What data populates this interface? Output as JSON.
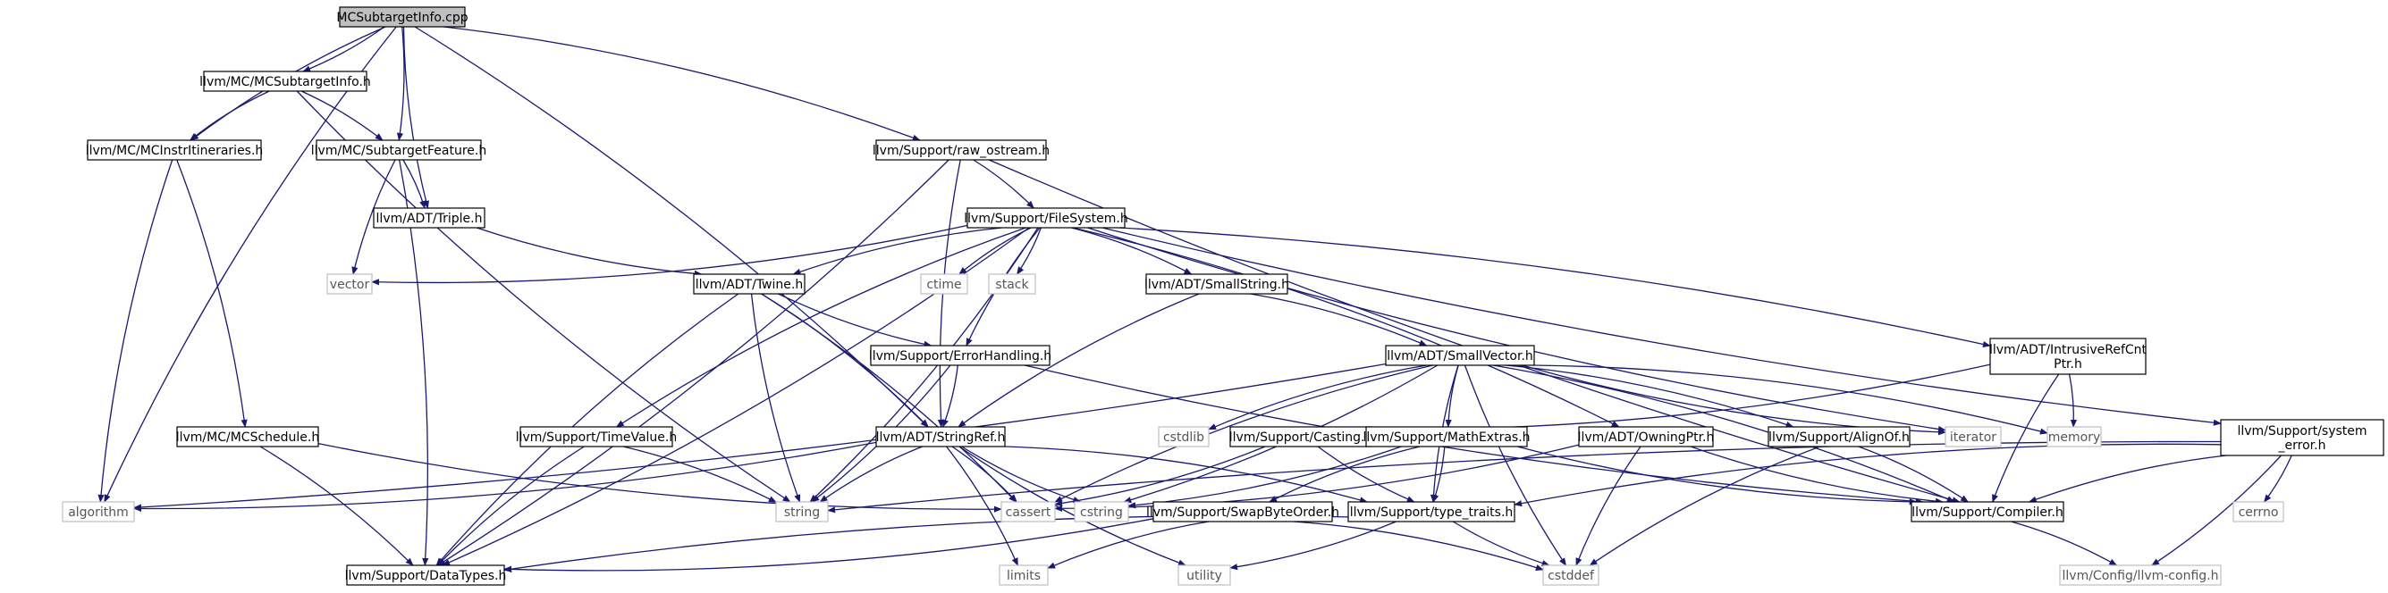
{
  "graph": {
    "nodes": [
      {
        "id": "MCSubtargetInfo.cpp",
        "label": "MCSubtargetInfo.cpp",
        "kind": "root"
      },
      {
        "id": "llvm/MC/MCSubtargetInfo.h",
        "label": "llvm/MC/MCSubtargetInfo.h",
        "kind": "header"
      },
      {
        "id": "llvm/Support/raw_ostream.h",
        "label": "llvm/Support/raw_ostream.h",
        "kind": "header"
      },
      {
        "id": "llvm/MC/MCInstrItineraries.h",
        "label": "llvm/MC/MCInstrItineraries.h",
        "kind": "header"
      },
      {
        "id": "llvm/MC/SubtargetFeature.h",
        "label": "llvm/MC/SubtargetFeature.h",
        "kind": "header"
      },
      {
        "id": "llvm/ADT/Triple.h",
        "label": "llvm/ADT/Triple.h",
        "kind": "header"
      },
      {
        "id": "llvm/Support/FileSystem.h",
        "label": "llvm/Support/FileSystem.h",
        "kind": "header"
      },
      {
        "id": "vector",
        "label": "vector",
        "kind": "system"
      },
      {
        "id": "ctime",
        "label": "ctime",
        "kind": "system"
      },
      {
        "id": "stack",
        "label": "stack",
        "kind": "system"
      },
      {
        "id": "llvm/ADT/Twine.h",
        "label": "llvm/ADT/Twine.h",
        "kind": "header"
      },
      {
        "id": "llvm/ADT/SmallString.h",
        "label": "llvm/ADT/SmallString.h",
        "kind": "header"
      },
      {
        "id": "llvm/Support/ErrorHandling.h",
        "label": "llvm/Support/ErrorHandling.h",
        "kind": "header"
      },
      {
        "id": "llvm/ADT/SmallVector.h",
        "label": "llvm/ADT/SmallVector.h",
        "kind": "header"
      },
      {
        "id": "llvm/ADT/IntrusiveRefCntPtr.h",
        "label": [
          "llvm/ADT/IntrusiveRefCnt",
          "Ptr.h"
        ],
        "kind": "header"
      },
      {
        "id": "llvm/MC/MCSchedule.h",
        "label": "llvm/MC/MCSchedule.h",
        "kind": "header"
      },
      {
        "id": "llvm/Support/TimeValue.h",
        "label": "llvm/Support/TimeValue.h",
        "kind": "header"
      },
      {
        "id": "llvm/ADT/StringRef.h",
        "label": "llvm/ADT/StringRef.h",
        "kind": "header"
      },
      {
        "id": "cstdlib",
        "label": "cstdlib",
        "kind": "system"
      },
      {
        "id": "llvm/Support/Casting.h",
        "label": "llvm/Support/Casting.h",
        "kind": "header"
      },
      {
        "id": "llvm/Support/MathExtras.h",
        "label": "llvm/Support/MathExtras.h",
        "kind": "header"
      },
      {
        "id": "llvm/ADT/OwningPtr.h",
        "label": "llvm/ADT/OwningPtr.h",
        "kind": "header"
      },
      {
        "id": "llvm/Support/AlignOf.h",
        "label": "llvm/Support/AlignOf.h",
        "kind": "header"
      },
      {
        "id": "iterator",
        "label": "iterator",
        "kind": "system"
      },
      {
        "id": "memory",
        "label": "memory",
        "kind": "system"
      },
      {
        "id": "llvm/Support/system_error.h",
        "label": [
          "llvm/Support/system",
          "_error.h"
        ],
        "kind": "header"
      },
      {
        "id": "algorithm",
        "label": "algorithm",
        "kind": "system"
      },
      {
        "id": "string",
        "label": "string",
        "kind": "system"
      },
      {
        "id": "cassert",
        "label": "cassert",
        "kind": "system"
      },
      {
        "id": "cstring",
        "label": "cstring",
        "kind": "system"
      },
      {
        "id": "llvm/Support/SwapByteOrder.h",
        "label": "llvm/Support/SwapByteOrder.h",
        "kind": "header"
      },
      {
        "id": "llvm/Support/type_traits.h",
        "label": "llvm/Support/type_traits.h",
        "kind": "header"
      },
      {
        "id": "llvm/Support/Compiler.h",
        "label": "llvm/Support/Compiler.h",
        "kind": "header"
      },
      {
        "id": "cerrno",
        "label": "cerrno",
        "kind": "system"
      },
      {
        "id": "llvm/Support/DataTypes.h",
        "label": "llvm/Support/DataTypes.h",
        "kind": "header"
      },
      {
        "id": "limits",
        "label": "limits",
        "kind": "system"
      },
      {
        "id": "utility",
        "label": "utility",
        "kind": "system"
      },
      {
        "id": "cstddef",
        "label": "cstddef",
        "kind": "system"
      },
      {
        "id": "llvm/Config/llvm-config.h",
        "label": "llvm/Config/llvm-config.h",
        "kind": "system"
      }
    ],
    "edges": [
      [
        "MCSubtargetInfo.cpp",
        "llvm/MC/MCSubtargetInfo.h"
      ],
      [
        "MCSubtargetInfo.cpp",
        "llvm/MC/MCInstrItineraries.h"
      ],
      [
        "MCSubtargetInfo.cpp",
        "llvm/MC/SubtargetFeature.h"
      ],
      [
        "MCSubtargetInfo.cpp",
        "llvm/ADT/Triple.h"
      ],
      [
        "MCSubtargetInfo.cpp",
        "llvm/Support/raw_ostream.h"
      ],
      [
        "MCSubtargetInfo.cpp",
        "algorithm"
      ],
      [
        "MCSubtargetInfo.cpp",
        "llvm/ADT/StringRef.h"
      ],
      [
        "llvm/MC/MCSubtargetInfo.h",
        "llvm/MC/MCInstrItineraries.h"
      ],
      [
        "llvm/MC/MCSubtargetInfo.h",
        "llvm/MC/SubtargetFeature.h"
      ],
      [
        "llvm/MC/MCSubtargetInfo.h",
        "string"
      ],
      [
        "llvm/MC/MCInstrItineraries.h",
        "llvm/MC/MCSchedule.h"
      ],
      [
        "llvm/MC/MCInstrItineraries.h",
        "algorithm"
      ],
      [
        "llvm/MC/SubtargetFeature.h",
        "llvm/ADT/Triple.h"
      ],
      [
        "llvm/MC/SubtargetFeature.h",
        "vector"
      ],
      [
        "llvm/MC/SubtargetFeature.h",
        "llvm/Support/DataTypes.h"
      ],
      [
        "llvm/ADT/Triple.h",
        "llvm/ADT/Twine.h"
      ],
      [
        "llvm/Support/raw_ostream.h",
        "llvm/Support/FileSystem.h"
      ],
      [
        "llvm/Support/raw_ostream.h",
        "llvm/Support/Compiler.h"
      ],
      [
        "llvm/Support/raw_ostream.h",
        "llvm/Support/DataTypes.h"
      ],
      [
        "llvm/Support/raw_ostream.h",
        "llvm/ADT/StringRef.h"
      ],
      [
        "llvm/Support/FileSystem.h",
        "vector"
      ],
      [
        "llvm/Support/FileSystem.h",
        "ctime"
      ],
      [
        "llvm/Support/FileSystem.h",
        "stack"
      ],
      [
        "llvm/Support/FileSystem.h",
        "llvm/ADT/Twine.h"
      ],
      [
        "llvm/Support/FileSystem.h",
        "llvm/ADT/SmallString.h"
      ],
      [
        "llvm/Support/FileSystem.h",
        "llvm/Support/ErrorHandling.h"
      ],
      [
        "llvm/Support/FileSystem.h",
        "llvm/ADT/IntrusiveRefCntPtr.h"
      ],
      [
        "llvm/Support/FileSystem.h",
        "llvm/Support/system_error.h"
      ],
      [
        "llvm/Support/FileSystem.h",
        "llvm/ADT/OwningPtr.h"
      ],
      [
        "llvm/Support/FileSystem.h",
        "llvm/Support/TimeValue.h"
      ],
      [
        "llvm/Support/FileSystem.h",
        "llvm/Support/DataTypes.h"
      ],
      [
        "llvm/Support/FileSystem.h",
        "iterator"
      ],
      [
        "llvm/Support/FileSystem.h",
        "string"
      ],
      [
        "llvm/ADT/Twine.h",
        "llvm/Support/ErrorHandling.h"
      ],
      [
        "llvm/ADT/Twine.h",
        "llvm/ADT/StringRef.h"
      ],
      [
        "llvm/ADT/Twine.h",
        "string"
      ],
      [
        "llvm/ADT/Twine.h",
        "cassert"
      ],
      [
        "llvm/ADT/Twine.h",
        "llvm/Support/DataTypes.h"
      ],
      [
        "llvm/ADT/SmallString.h",
        "llvm/ADT/SmallVector.h"
      ],
      [
        "llvm/ADT/SmallString.h",
        "llvm/ADT/StringRef.h"
      ],
      [
        "llvm/Support/ErrorHandling.h",
        "llvm/ADT/StringRef.h"
      ],
      [
        "llvm/Support/ErrorHandling.h",
        "llvm/Support/Compiler.h"
      ],
      [
        "llvm/Support/ErrorHandling.h",
        "string"
      ],
      [
        "llvm/ADT/SmallVector.h",
        "cstdlib"
      ],
      [
        "llvm/ADT/SmallVector.h",
        "algorithm"
      ],
      [
        "llvm/ADT/SmallVector.h",
        "cassert"
      ],
      [
        "llvm/ADT/SmallVector.h",
        "cstring"
      ],
      [
        "llvm/ADT/SmallVector.h",
        "llvm/Support/MathExtras.h"
      ],
      [
        "llvm/ADT/SmallVector.h",
        "llvm/Support/AlignOf.h"
      ],
      [
        "llvm/ADT/SmallVector.h",
        "llvm/Support/type_traits.h"
      ],
      [
        "llvm/ADT/SmallVector.h",
        "llvm/Support/Compiler.h"
      ],
      [
        "llvm/ADT/SmallVector.h",
        "iterator"
      ],
      [
        "llvm/ADT/SmallVector.h",
        "memory"
      ],
      [
        "llvm/ADT/SmallVector.h",
        "cstddef"
      ],
      [
        "llvm/ADT/IntrusiveRefCntPtr.h",
        "llvm/Support/Casting.h"
      ],
      [
        "llvm/ADT/IntrusiveRefCntPtr.h",
        "llvm/Support/Compiler.h"
      ],
      [
        "llvm/ADT/IntrusiveRefCntPtr.h",
        "memory"
      ],
      [
        "llvm/Support/system_error.h",
        "llvm/Support/Compiler.h"
      ],
      [
        "llvm/Support/system_error.h",
        "cerrno"
      ],
      [
        "llvm/Support/system_error.h",
        "string"
      ],
      [
        "llvm/Support/system_error.h",
        "llvm/Config/llvm-config.h"
      ],
      [
        "llvm/Support/system_error.h",
        "llvm/Support/type_traits.h"
      ],
      [
        "llvm/MC/MCSchedule.h",
        "llvm/Support/DataTypes.h"
      ],
      [
        "llvm/MC/MCSchedule.h",
        "cassert"
      ],
      [
        "llvm/Support/TimeValue.h",
        "string"
      ],
      [
        "llvm/Support/TimeValue.h",
        "llvm/Support/DataTypes.h"
      ],
      [
        "llvm/ADT/StringRef.h",
        "algorithm"
      ],
      [
        "llvm/ADT/StringRef.h",
        "string"
      ],
      [
        "llvm/ADT/StringRef.h",
        "cassert"
      ],
      [
        "llvm/ADT/StringRef.h",
        "cstring"
      ],
      [
        "llvm/ADT/StringRef.h",
        "limits"
      ],
      [
        "llvm/ADT/StringRef.h",
        "utility"
      ],
      [
        "llvm/ADT/StringRef.h",
        "llvm/Support/type_traits.h"
      ],
      [
        "llvm/Support/Casting.h",
        "llvm/Support/type_traits.h"
      ],
      [
        "llvm/Support/Casting.h",
        "cassert"
      ],
      [
        "llvm/Support/MathExtras.h",
        "llvm/Support/SwapByteOrder.h"
      ],
      [
        "llvm/Support/MathExtras.h",
        "llvm/Support/type_traits.h"
      ],
      [
        "llvm/Support/MathExtras.h",
        "llvm/Support/Compiler.h"
      ],
      [
        "llvm/Support/MathExtras.h",
        "cstring"
      ],
      [
        "llvm/ADT/OwningPtr.h",
        "llvm/Support/Compiler.h"
      ],
      [
        "llvm/ADT/OwningPtr.h",
        "cassert"
      ],
      [
        "llvm/ADT/OwningPtr.h",
        "cstddef"
      ],
      [
        "llvm/Support/AlignOf.h",
        "llvm/Support/Compiler.h"
      ],
      [
        "llvm/Support/AlignOf.h",
        "cstddef"
      ],
      [
        "llvm/Support/SwapByteOrder.h",
        "llvm/Support/DataTypes.h"
      ],
      [
        "llvm/Support/SwapByteOrder.h",
        "limits"
      ],
      [
        "llvm/Support/SwapByteOrder.h",
        "cstddef"
      ],
      [
        "llvm/Support/type_traits.h",
        "llvm/Support/DataTypes.h"
      ],
      [
        "llvm/Support/type_traits.h",
        "utility"
      ],
      [
        "llvm/Support/type_traits.h",
        "cstddef"
      ],
      [
        "llvm/Support/Compiler.h",
        "llvm/Config/llvm-config.h"
      ]
    ]
  },
  "colors": {
    "edge": "#191970",
    "root_fill": "#bfbfbf",
    "node_border": "#000000",
    "system_border": "#bfbfbf",
    "system_text": "#555555"
  }
}
